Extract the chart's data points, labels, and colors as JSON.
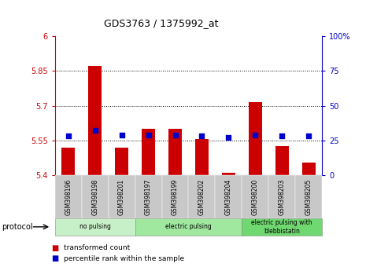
{
  "title": "GDS3763 / 1375992_at",
  "samples": [
    "GSM398196",
    "GSM398198",
    "GSM398201",
    "GSM398197",
    "GSM398199",
    "GSM398202",
    "GSM398204",
    "GSM398200",
    "GSM398203",
    "GSM398205"
  ],
  "transformed_counts": [
    5.52,
    5.87,
    5.52,
    5.6,
    5.6,
    5.555,
    5.41,
    5.715,
    5.525,
    5.455
  ],
  "percentile_ranks": [
    28,
    32,
    29,
    29,
    29,
    28,
    27,
    29,
    28,
    28
  ],
  "y_min": 5.4,
  "y_max": 6.0,
  "y_ticks": [
    5.4,
    5.55,
    5.7,
    5.85,
    6.0
  ],
  "y_ticks_labels": [
    "5.4",
    "5.55",
    "5.7",
    "5.85",
    "6"
  ],
  "y2_ticks": [
    0,
    25,
    50,
    75,
    100
  ],
  "y2_ticks_labels": [
    "0",
    "25",
    "50",
    "75",
    "100%"
  ],
  "groups": [
    {
      "label": "no pulsing",
      "start": 0,
      "end": 2,
      "color": "#c8f0c8"
    },
    {
      "label": "electric pulsing",
      "start": 3,
      "end": 6,
      "color": "#a0e8a0"
    },
    {
      "label": "electric pulsing with\nblebbistatin",
      "start": 7,
      "end": 9,
      "color": "#70d870"
    }
  ],
  "bar_color": "#cc0000",
  "dot_color": "#0000cc",
  "bar_width": 0.5,
  "dot_size": 18,
  "left_axis_color": "#cc0000",
  "right_axis_color": "#0000cc",
  "tick_bg_color": "#c8c8c8",
  "legend_red_label": "transformed count",
  "legend_blue_label": "percentile rank within the sample",
  "protocol_label": "protocol"
}
